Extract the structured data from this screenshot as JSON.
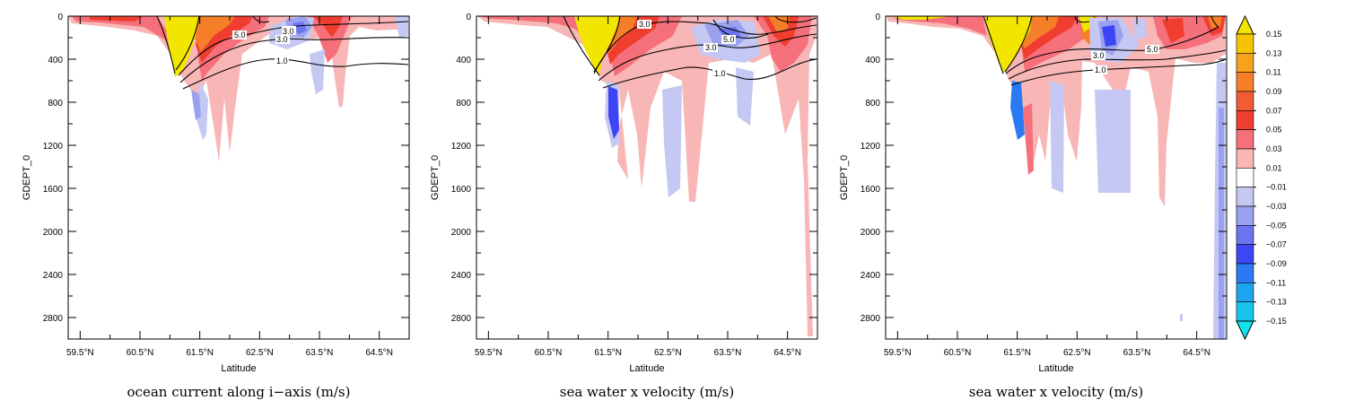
{
  "panels": [
    {
      "title": "ocean current along i−axis (m/s)",
      "xlabel": "Latitude",
      "ylabel": "GDEPT_0"
    },
    {
      "title": "sea water x velocity (m/s)",
      "xlabel": "Latitude",
      "ylabel": "GDEPT_0"
    },
    {
      "title": "sea water x velocity (m/s)",
      "xlabel": "Latitude",
      "ylabel": "GDEPT_0"
    }
  ],
  "chart_data": [
    {
      "type": "heatmap",
      "title": "ocean current along i−axis (m/s)",
      "xlabel": "Latitude",
      "ylabel": "GDEPT_0",
      "xlim": [
        59.3,
        65.0
      ],
      "ylim": [
        3000,
        0
      ],
      "x_ticks": [
        "59.5°N",
        "60.5°N",
        "61.5°N",
        "62.5°N",
        "63.5°N",
        "64.5°N"
      ],
      "x_tick_values": [
        59.5,
        60.5,
        61.5,
        62.5,
        63.5,
        64.5
      ],
      "y_ticks": [
        "0",
        "400",
        "800",
        "1200",
        "1600",
        "2000",
        "2400",
        "2800"
      ],
      "y_tick_values": [
        0,
        400,
        800,
        1200,
        1600,
        2000,
        2400,
        2800
      ],
      "contour_labels": [
        "5.0",
        "3.0",
        "3.0",
        "1.0"
      ]
    },
    {
      "type": "heatmap",
      "title": "sea water x velocity (m/s)",
      "xlabel": "Latitude",
      "ylabel": "GDEPT_0",
      "xlim": [
        59.3,
        65.0
      ],
      "ylim": [
        3000,
        0
      ],
      "x_ticks": [
        "59.5°N",
        "60.5°N",
        "61.5°N",
        "62.5°N",
        "63.5°N",
        "64.5°N"
      ],
      "x_tick_values": [
        59.5,
        60.5,
        61.5,
        62.5,
        63.5,
        64.5
      ],
      "y_ticks": [
        "0",
        "400",
        "800",
        "1200",
        "1600",
        "2000",
        "2400",
        "2800"
      ],
      "y_tick_values": [
        0,
        400,
        800,
        1200,
        1600,
        2000,
        2400,
        2800
      ],
      "contour_labels": [
        "3.0",
        "5.0",
        "3.0",
        "1.0"
      ]
    },
    {
      "type": "heatmap",
      "title": "sea water x velocity (m/s)",
      "xlabel": "Latitude",
      "ylabel": "GDEPT_0",
      "xlim": [
        59.3,
        65.0
      ],
      "ylim": [
        3000,
        0
      ],
      "x_ticks": [
        "59.5°N",
        "60.5°N",
        "61.5°N",
        "62.5°N",
        "63.5°N",
        "64.5°N"
      ],
      "x_tick_values": [
        59.5,
        60.5,
        61.5,
        62.5,
        63.5,
        64.5
      ],
      "y_ticks": [
        "0",
        "400",
        "800",
        "1200",
        "1600",
        "2000",
        "2400",
        "2800"
      ],
      "y_tick_values": [
        0,
        400,
        800,
        1200,
        1600,
        2000,
        2400,
        2800
      ],
      "contour_labels": [
        "3.0",
        "5.0",
        "1.0"
      ]
    }
  ],
  "colorbar": {
    "levels": [
      "0.15",
      "0.13",
      "0.11",
      "0.09",
      "0.07",
      "0.05",
      "0.03",
      "0.01",
      "−0.01",
      "−0.03",
      "−0.05",
      "−0.07",
      "−0.09",
      "−0.11",
      "−0.13",
      "−0.15"
    ],
    "colors": [
      "#f2e600",
      "#f5c400",
      "#f7a21d",
      "#f57f29",
      "#f05c34",
      "#ef3e30",
      "#f5707a",
      "#f8b6b6",
      "#ffffff",
      "#c4c8f2",
      "#9aa1ef",
      "#6c74f0",
      "#3d45f5",
      "#2b7af4",
      "#1ea5f1",
      "#17c6ec",
      "#12e1ee"
    ]
  },
  "colors": {
    "pos_weak": "#f8b6b6",
    "pos_mid": "#f5707a",
    "pos_strong": "#ef3e30",
    "orange": "#f57f29",
    "yellow": "#f2e600",
    "neg_weak": "#c4c8f2",
    "neg_mid": "#9aa1ef",
    "neg_strong": "#3d45f5",
    "neg_cyan": "#2b7af4"
  }
}
